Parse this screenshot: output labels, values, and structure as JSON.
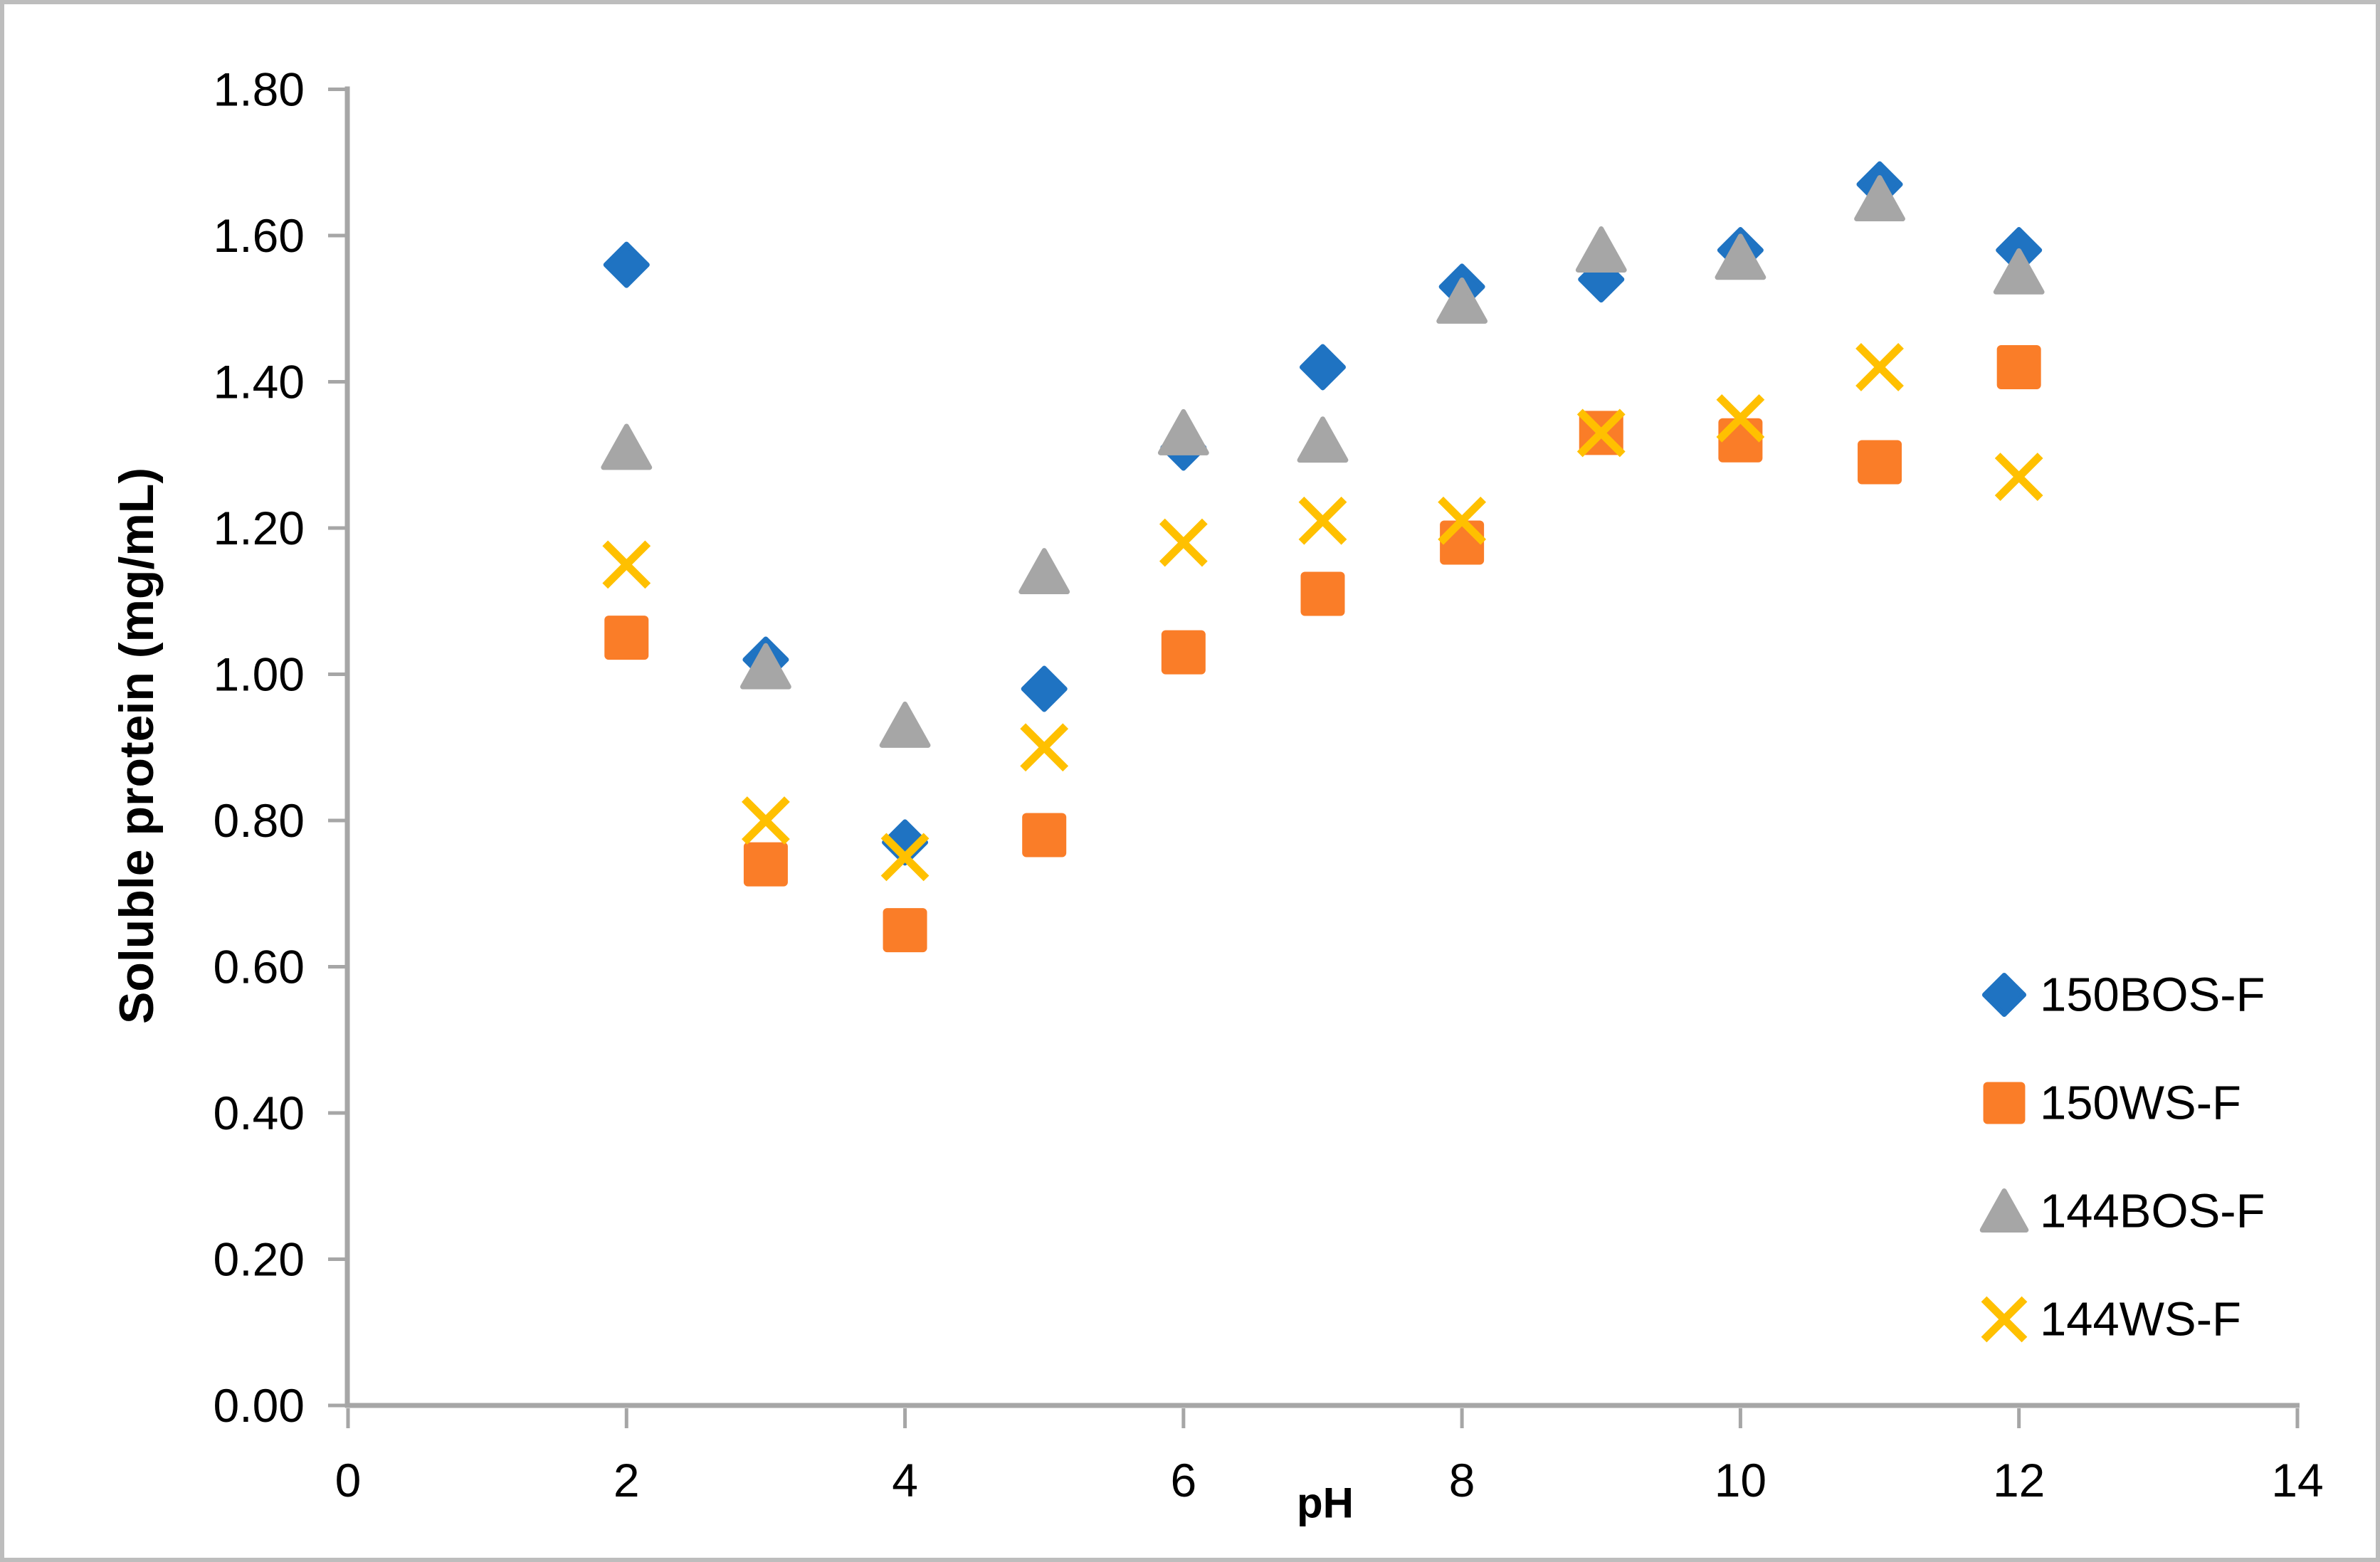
{
  "chart_data": {
    "type": "scatter",
    "title": "",
    "xlabel": "pH",
    "ylabel": "Soluble protein (mg/mL)",
    "xlim": [
      0,
      14
    ],
    "ylim": [
      0.0,
      1.8
    ],
    "grid": false,
    "legend_position": "right-lower-inside",
    "x_ticks": [
      0,
      2,
      4,
      6,
      8,
      10,
      12,
      14
    ],
    "x_tick_labels": [
      "0",
      "2",
      "4",
      "6",
      "8",
      "10",
      "12",
      "14"
    ],
    "y_ticks": [
      0.0,
      0.2,
      0.4,
      0.6,
      0.8,
      1.0,
      1.2,
      1.4,
      1.6,
      1.8
    ],
    "y_tick_labels": [
      "0.00",
      "0.20",
      "0.40",
      "0.60",
      "0.80",
      "1.00",
      "1.20",
      "1.40",
      "1.60",
      "1.80"
    ],
    "x": [
      2,
      3,
      4,
      5,
      6,
      7,
      8,
      9,
      10,
      11,
      12
    ],
    "series": [
      {
        "name": "150BOS-F",
        "marker": "diamond",
        "color": "#1F73C2",
        "values": [
          1.56,
          1.02,
          0.77,
          0.98,
          1.31,
          1.42,
          1.53,
          1.54,
          1.58,
          1.67,
          1.58
        ]
      },
      {
        "name": "150WS-F",
        "marker": "square",
        "color": "#FA7D28",
        "values": [
          1.05,
          0.74,
          0.65,
          0.78,
          1.03,
          1.11,
          1.18,
          1.33,
          1.32,
          1.29,
          1.42
        ]
      },
      {
        "name": "144BOS-F",
        "marker": "triangle",
        "color": "#A6A6A6",
        "values": [
          1.31,
          1.01,
          0.93,
          1.14,
          1.33,
          1.32,
          1.51,
          1.58,
          1.57,
          1.65,
          1.55
        ]
      },
      {
        "name": "144WS-F",
        "marker": "x",
        "color": "#FFC000",
        "values": [
          1.15,
          0.8,
          0.75,
          0.9,
          1.18,
          1.21,
          1.21,
          1.33,
          1.35,
          1.42,
          1.27
        ]
      }
    ],
    "colors": {
      "axis": "#A6A6A6",
      "border": "#BDBDBD",
      "text": "#000000",
      "background": "#FFFFFF"
    }
  }
}
